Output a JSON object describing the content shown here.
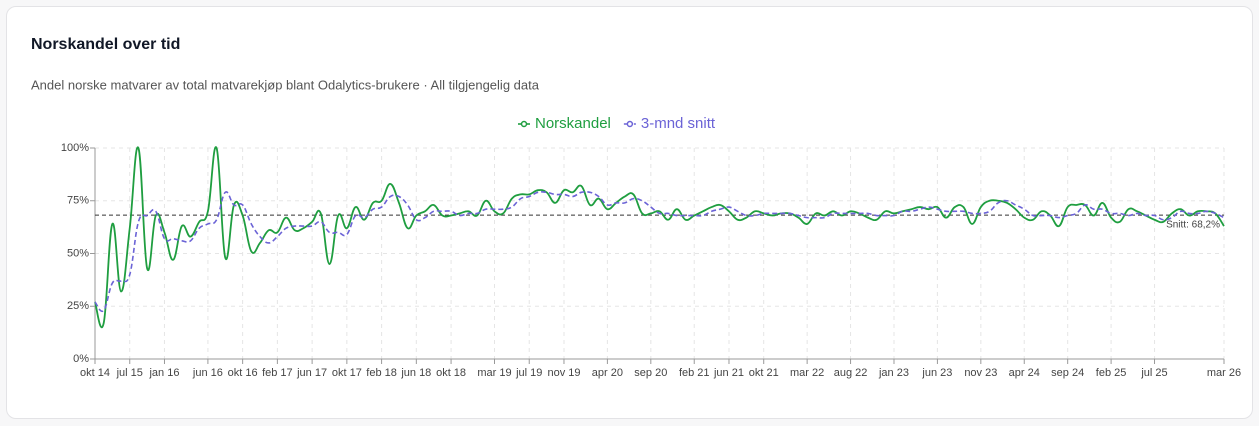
{
  "chart_data": {
    "type": "line",
    "title": "Norskandel over tid",
    "subtitle": "Andel norske matvarer av total matvarekjøp blant Odalytics-brukere · All tilgjengelig data",
    "categories": [
      "okt 14",
      null,
      null,
      null,
      "jul 15",
      null,
      null,
      null,
      "jan 16",
      null,
      null,
      null,
      null,
      "jun 16",
      null,
      null,
      null,
      "okt 16",
      null,
      null,
      null,
      "feb 17",
      null,
      null,
      null,
      "jun 17",
      null,
      null,
      null,
      "okt 17",
      null,
      null,
      null,
      "feb 18",
      null,
      null,
      null,
      "jun 18",
      null,
      null,
      null,
      "okt 18",
      null,
      null,
      null,
      null,
      "mar 19",
      null,
      null,
      null,
      "jul 19",
      null,
      null,
      null,
      "nov 19",
      null,
      null,
      null,
      null,
      "apr 20",
      null,
      null,
      null,
      null,
      "sep 20",
      null,
      null,
      null,
      null,
      "feb 21",
      null,
      null,
      null,
      "jun 21",
      null,
      null,
      null,
      "okt 21",
      null,
      null,
      null,
      null,
      "mar 22",
      null,
      null,
      null,
      null,
      "aug 22",
      null,
      null,
      null,
      null,
      "jan 23",
      null,
      null,
      null,
      null,
      "jun 23",
      null,
      null,
      null,
      null,
      "nov 23",
      null,
      null,
      null,
      null,
      "apr 24",
      null,
      null,
      null,
      null,
      "sep 24",
      null,
      null,
      null,
      null,
      "feb 25",
      null,
      null,
      null,
      null,
      "jul 25",
      null,
      null,
      null,
      null,
      null,
      null,
      null,
      "mar 26"
    ],
    "series": [
      {
        "name": "Norskandel",
        "color": "#1f9e40",
        "dashed": false,
        "values": [
          27,
          17,
          64,
          32,
          62,
          100,
          43,
          68,
          60,
          47,
          63,
          58,
          65,
          70,
          100,
          48,
          73,
          68,
          51,
          55,
          61,
          60,
          67,
          61,
          62,
          65,
          69,
          45,
          68,
          62,
          72,
          66,
          74,
          75,
          83,
          74,
          62,
          68,
          70,
          73,
          68,
          68,
          69,
          70,
          68,
          75,
          70,
          69,
          76,
          78,
          78,
          80,
          79,
          74,
          80,
          79,
          82,
          73,
          76,
          71,
          74,
          77,
          78,
          69,
          69,
          70,
          66,
          71,
          66,
          68,
          70,
          72,
          73,
          70,
          66,
          67,
          70,
          69,
          68,
          69,
          69,
          67,
          64,
          69,
          68,
          70,
          68,
          70,
          69,
          67,
          66,
          70,
          69,
          70,
          71,
          72,
          71,
          72,
          67,
          72,
          72,
          64,
          72,
          75,
          75,
          74,
          71,
          67,
          66,
          70,
          68,
          63,
          72,
          73,
          73,
          68,
          74,
          67,
          65,
          71,
          70,
          68,
          66,
          65,
          69,
          71,
          68,
          70,
          70,
          69,
          63
        ]
      },
      {
        "name": "3-mnd snitt",
        "color": "#6b63d6",
        "dashed": true,
        "values": [
          27,
          23,
          36,
          37,
          40,
          65,
          68,
          70,
          57,
          57,
          56,
          56,
          62,
          64,
          66,
          79,
          73,
          73,
          64,
          58,
          55,
          58,
          62,
          63,
          63,
          63,
          65,
          60,
          60,
          59,
          68,
          67,
          71,
          72,
          77,
          77,
          73,
          66,
          67,
          70,
          70,
          70,
          68,
          69,
          69,
          71,
          71,
          71,
          72,
          76,
          77,
          79,
          79,
          78,
          78,
          77,
          79,
          79,
          77,
          73,
          74,
          74,
          76,
          75,
          72,
          69,
          69,
          68,
          68,
          68,
          68,
          70,
          71,
          72,
          70,
          68,
          68,
          69,
          69,
          69,
          69,
          68,
          67,
          67,
          67,
          69,
          69,
          69,
          69,
          69,
          68,
          68,
          68,
          70,
          70,
          71,
          72,
          71,
          70,
          70,
          70,
          69,
          69,
          70,
          74,
          75,
          73,
          71,
          68,
          68,
          68,
          67,
          68,
          69,
          73,
          71,
          71,
          69,
          69,
          68,
          69,
          68,
          68,
          66,
          67,
          70,
          69,
          69,
          70,
          69,
          67
        ]
      }
    ],
    "average": {
      "value": 68.2,
      "label": "Snitt: 68,2%"
    },
    "ylim": [
      0,
      100
    ],
    "yticks": [
      {
        "value": 0,
        "label": "0%"
      },
      {
        "value": 25,
        "label": "25%"
      },
      {
        "value": 50,
        "label": "50%"
      },
      {
        "value": 75,
        "label": "75%"
      },
      {
        "value": 100,
        "label": "100%"
      }
    ],
    "grid": true,
    "legend": "top"
  }
}
